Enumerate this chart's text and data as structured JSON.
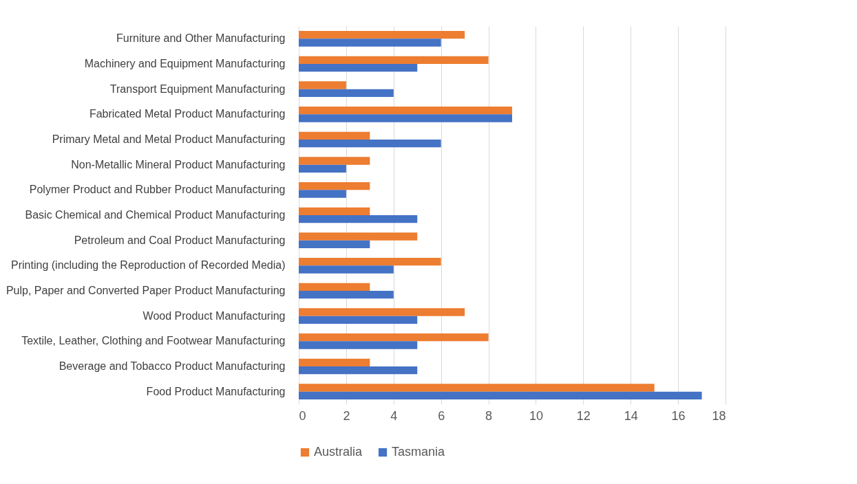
{
  "chart_data": {
    "type": "bar",
    "orientation": "horizontal",
    "categories": [
      "Furniture and Other Manufacturing",
      "Machinery and Equipment Manufacturing",
      "Transport Equipment Manufacturing",
      "Fabricated Metal Product Manufacturing",
      "Primary Metal and Metal Product Manufacturing",
      "Non-Metallic Mineral Product Manufacturing",
      "Polymer Product and Rubber Product Manufacturing",
      "Basic Chemical and Chemical Product Manufacturing",
      "Petroleum and Coal Product Manufacturing",
      "Printing (including the Reproduction of Recorded Media)",
      "Pulp, Paper and Converted Paper Product Manufacturing",
      "Wood Product Manufacturing",
      "Textile, Leather, Clothing and Footwear Manufacturing",
      "Beverage and Tobacco Product Manufacturing",
      "Food Product Manufacturing"
    ],
    "series": [
      {
        "name": "Australia",
        "color": "#ed7d31",
        "values": [
          7,
          8,
          2,
          9,
          3,
          3,
          3,
          3,
          5,
          6,
          3,
          7,
          8,
          3,
          15
        ]
      },
      {
        "name": "Tasmania",
        "color": "#4472c4",
        "values": [
          6,
          5,
          4,
          9,
          6,
          2,
          2,
          5,
          3,
          4,
          4,
          5,
          5,
          5,
          17
        ]
      }
    ],
    "xlim": [
      0,
      18
    ],
    "xticks": [
      0,
      2,
      4,
      6,
      8,
      10,
      12,
      14,
      16,
      18
    ],
    "grid": "x",
    "legend": "bottom"
  }
}
